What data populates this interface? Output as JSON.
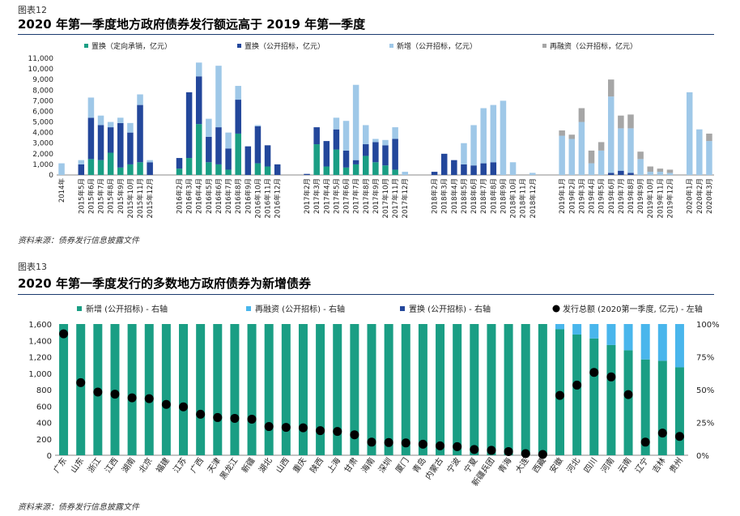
{
  "figure1": {
    "label": "图表12",
    "title": "2020 年第一季度地方政府债券发行额远高于 2019 年第一季度",
    "source": "资料来源：债券发行信息披露文件"
  },
  "figure2": {
    "label": "图表13",
    "title": "2020 年第一季度发行的多数地方政府债券为新增债券",
    "source": "资料来源：债券发行信息披露文件"
  },
  "colors": {
    "zhihuan_dingxiang": "#1a9e84",
    "zhihuan_gongkai": "#23479b",
    "xinzeng": "#9fc8e8",
    "zairongzi": "#a6a6a6",
    "xinzeng_fig2": "#1a9e84",
    "zairongzi_fig2": "#49b6ec",
    "zhihuan_fig2": "#23479b",
    "total_dot": "#000000",
    "rule": "#1a3a6e"
  },
  "chart_data": [
    {
      "type": "bar",
      "stacked": true,
      "categories": [
        "2014年",
        "",
        "2015年5月",
        "2015年6月",
        "2015年7月",
        "2015年8月",
        "2015年9月",
        "2015年10月",
        "2015年11月",
        "2015年12月",
        "",
        "",
        "2016年2月",
        "2016年3月",
        "2016年4月",
        "2016年5月",
        "2016年6月",
        "2016年7月",
        "2016年8月",
        "2016年9月",
        "2016年10月",
        "2016年11月",
        "2016年12月",
        "",
        "",
        "2017年2月",
        "2017年3月",
        "2017年4月",
        "2017年5月",
        "2017年6月",
        "2017年7月",
        "2017年8月",
        "2017年9月",
        "2017年10月",
        "2017年11月",
        "2017年12月",
        "",
        "",
        "2018年2月",
        "2018年3月",
        "2018年4月",
        "2018年5月",
        "2018年6月",
        "2018年7月",
        "2018年8月",
        "2018年9月",
        "2018年10月",
        "2018年11月",
        "2018年12月",
        "",
        "",
        "2019年1月",
        "2019年2月",
        "2019年3月",
        "2019年4月",
        "2019年5月",
        "2019年6月",
        "2019年7月",
        "2019年8月",
        "2019年9月",
        "2019年10月",
        "2019年11月",
        "2019年12月",
        "",
        "2020年1月",
        "2020年2月",
        "2020年3月"
      ],
      "series": [
        {
          "name": "置换（定向承销，亿元）",
          "values": [
            0,
            0,
            0,
            1500,
            1400,
            2100,
            700,
            1000,
            1200,
            0,
            0,
            0,
            600,
            1600,
            4800,
            1200,
            1000,
            500,
            3900,
            0,
            1100,
            800,
            0,
            0,
            0,
            0,
            2900,
            800,
            2400,
            700,
            1000,
            1800,
            1200,
            900,
            500,
            0,
            0,
            0,
            0,
            0,
            0,
            0,
            0,
            0,
            0,
            0,
            0,
            0,
            0,
            0,
            0,
            0,
            0,
            0,
            0,
            0,
            0,
            0,
            0,
            0,
            0,
            0,
            0,
            0,
            0,
            0,
            0
          ]
        },
        {
          "name": "置换（公开招标，亿元）",
          "values": [
            0,
            0,
            1000,
            3900,
            3300,
            2400,
            4200,
            3000,
            5400,
            1200,
            0,
            0,
            1000,
            6200,
            4500,
            2400,
            3500,
            2000,
            3200,
            2700,
            3500,
            2000,
            1000,
            0,
            0,
            100,
            1600,
            2400,
            1900,
            1600,
            400,
            1100,
            1900,
            1900,
            2900,
            0,
            0,
            0,
            300,
            2000,
            1400,
            1000,
            900,
            1100,
            1200,
            0,
            0,
            0,
            0,
            0,
            0,
            0,
            0,
            0,
            0,
            0,
            200,
            400,
            200,
            0,
            0,
            0,
            0,
            0,
            0,
            0,
            0
          ]
        },
        {
          "name": "新增（公开招标，亿元）",
          "values": [
            1100,
            0,
            400,
            1900,
            900,
            500,
            500,
            900,
            1000,
            200,
            0,
            0,
            0,
            0,
            1300,
            1700,
            5800,
            1500,
            1300,
            0,
            100,
            0,
            0,
            0,
            0,
            0,
            0,
            0,
            1100,
            2800,
            7100,
            1800,
            300,
            500,
            1100,
            300,
            0,
            0,
            0,
            0,
            0,
            2000,
            3800,
            5200,
            5400,
            7000,
            1200,
            0,
            200,
            0,
            0,
            3700,
            3400,
            5000,
            1100,
            2300,
            7200,
            4000,
            4200,
            1500,
            300,
            300,
            200,
            0,
            7800,
            4300,
            3200
          ]
        },
        {
          "name": "再融资（公开招标，亿元）",
          "values": [
            0,
            0,
            0,
            0,
            0,
            0,
            0,
            0,
            0,
            0,
            0,
            0,
            0,
            0,
            0,
            0,
            0,
            0,
            0,
            0,
            0,
            0,
            0,
            0,
            0,
            0,
            0,
            0,
            0,
            0,
            0,
            0,
            0,
            0,
            0,
            0,
            0,
            0,
            0,
            0,
            0,
            0,
            0,
            0,
            0,
            0,
            0,
            0,
            0,
            0,
            0,
            500,
            400,
            1300,
            1200,
            800,
            1600,
            1200,
            1300,
            700,
            500,
            300,
            300,
            0,
            0,
            0,
            700
          ]
        }
      ],
      "ylim": [
        0,
        11000
      ],
      "yticks": [
        "0",
        "1,000",
        "2,000",
        "3,000",
        "4,000",
        "5,000",
        "6,000",
        "7,000",
        "8,000",
        "9,000",
        "10,000",
        "11,000"
      ]
    },
    {
      "type": "bar",
      "stacked": true,
      "categories": [
        "广东",
        "山东",
        "浙江",
        "江西",
        "湖南",
        "北京",
        "福建",
        "江苏",
        "广西",
        "天津",
        "黑龙江",
        "新疆",
        "湖北",
        "山西",
        "重庆",
        "陕西",
        "上海",
        "甘肃",
        "海南",
        "深圳",
        "厦门",
        "青岛",
        "内蒙古",
        "宁波",
        "宁夏",
        "新疆兵团",
        "青海",
        "大连",
        "西藏",
        "安徽",
        "河北",
        "四川",
        "河南",
        "云南",
        "辽宁",
        "吉林",
        "贵州"
      ],
      "series": [
        {
          "name": "新增 (公开招标) - 右轴",
          "axis": "right",
          "values": [
            100,
            100,
            100,
            100,
            100,
            100,
            100,
            100,
            100,
            100,
            100,
            100,
            100,
            100,
            100,
            100,
            100,
            100,
            100,
            100,
            100,
            100,
            100,
            100,
            100,
            100,
            100,
            100,
            100,
            96,
            92,
            89,
            84,
            80,
            73,
            72,
            67
          ]
        },
        {
          "name": "再融资 (公开招标) - 右轴",
          "axis": "right",
          "values": [
            0,
            0,
            0,
            0,
            0,
            0,
            0,
            0,
            0,
            0,
            0,
            0,
            0,
            0,
            0,
            0,
            0,
            0,
            0,
            0,
            0,
            0,
            0,
            0,
            0,
            0,
            0,
            0,
            0,
            4,
            8,
            11,
            16,
            20,
            27,
            28,
            33
          ]
        },
        {
          "name": "置换 (公开招标) - 右轴",
          "axis": "right",
          "values": [
            0,
            0,
            0,
            0,
            0,
            0,
            0,
            0,
            0,
            0,
            0,
            0,
            0,
            0,
            0,
            0,
            0,
            0,
            0,
            0,
            0,
            0,
            0,
            0,
            0,
            0,
            0,
            0,
            0,
            0,
            0,
            0,
            0,
            0,
            0,
            0,
            0
          ]
        },
        {
          "name": "发行总额 (2020第一季度, 亿元) - 左轴",
          "axis": "left",
          "type": "scatter",
          "values": [
            1480,
            885,
            770,
            745,
            700,
            690,
            620,
            590,
            500,
            460,
            450,
            440,
            350,
            340,
            335,
            300,
            290,
            250,
            160,
            155,
            150,
            135,
            115,
            105,
            70,
            60,
            45,
            20,
            10,
            730,
            855,
            1010,
            955,
            740,
            160,
            270,
            230
          ]
        }
      ],
      "ylim_left": [
        0,
        1600
      ],
      "yticks_left": [
        "0",
        "200",
        "400",
        "600",
        "800",
        "1,000",
        "1,200",
        "1,400",
        "1,600"
      ],
      "ylim_right": [
        0,
        100
      ],
      "yticks_right": [
        "0%",
        "25%",
        "50%",
        "75%",
        "100%"
      ]
    }
  ]
}
